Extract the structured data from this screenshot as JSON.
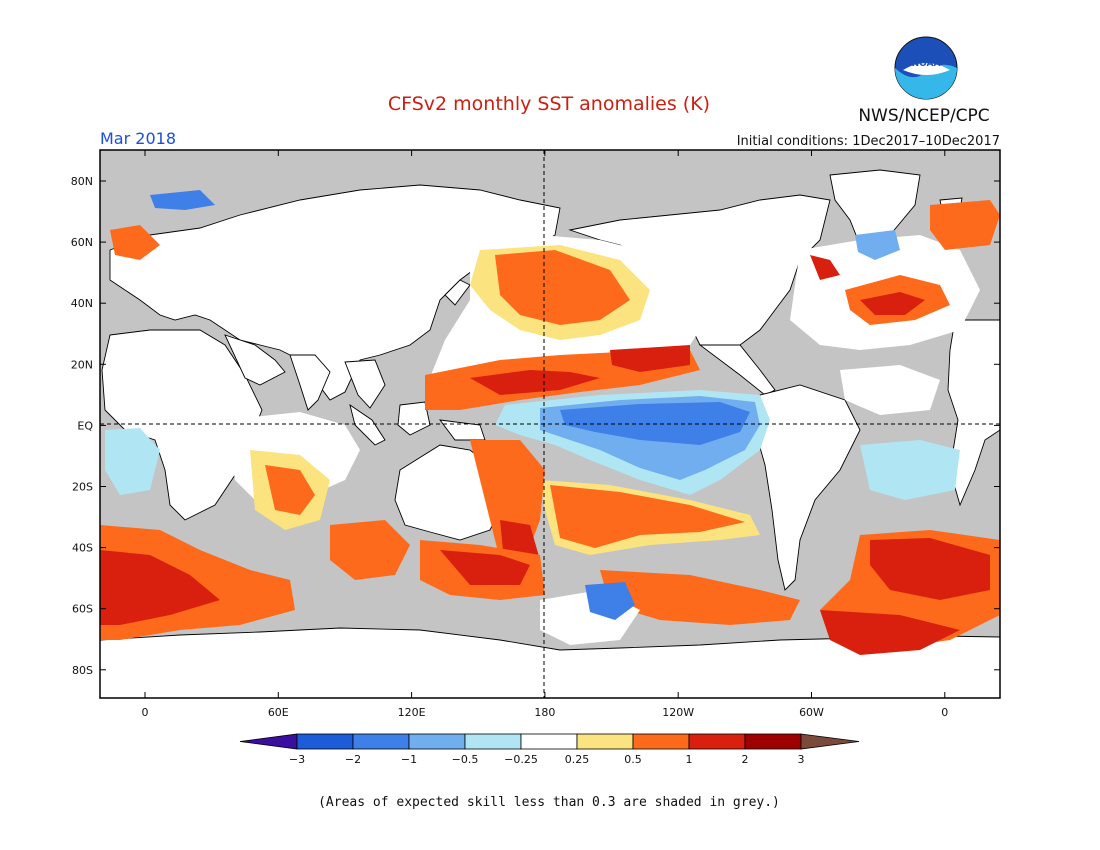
{
  "header": {
    "title": "CFSv2 monthly SST anomalies (K)",
    "agency": "NWS/NCEP/CPC",
    "logo_text": "NOAA",
    "valid_month": "Mar 2018",
    "initial_conditions": "Initial conditions: 1Dec2017–10Dec2017"
  },
  "map": {
    "lat_labels": [
      "80N",
      "60N",
      "40N",
      "20N",
      "EQ",
      "20S",
      "40S",
      "60S",
      "80S"
    ],
    "lon_labels": [
      "0",
      "60E",
      "120E",
      "180",
      "120W",
      "60W",
      "0"
    ],
    "reference_lines": [
      "EQ",
      "180"
    ],
    "low_skill_color": "#c4c4c4",
    "land_outline_color": "#000000"
  },
  "colorbar": {
    "levels": [
      "−3",
      "−2",
      "−1",
      "−0.5",
      "−0.25",
      "0.25",
      "0.5",
      "1",
      "2",
      "3"
    ],
    "colors": [
      "#3a0fa0",
      "#1d5cd8",
      "#3f7fe8",
      "#70aef0",
      "#b0e6f4",
      "#ffffff",
      "#fbe37f",
      "#fd6a1b",
      "#d9200f",
      "#9e0000",
      "#7a4b3a"
    ]
  },
  "footer": {
    "note": "(Areas of expected skill less than 0.3 are shaded in grey.)"
  }
}
